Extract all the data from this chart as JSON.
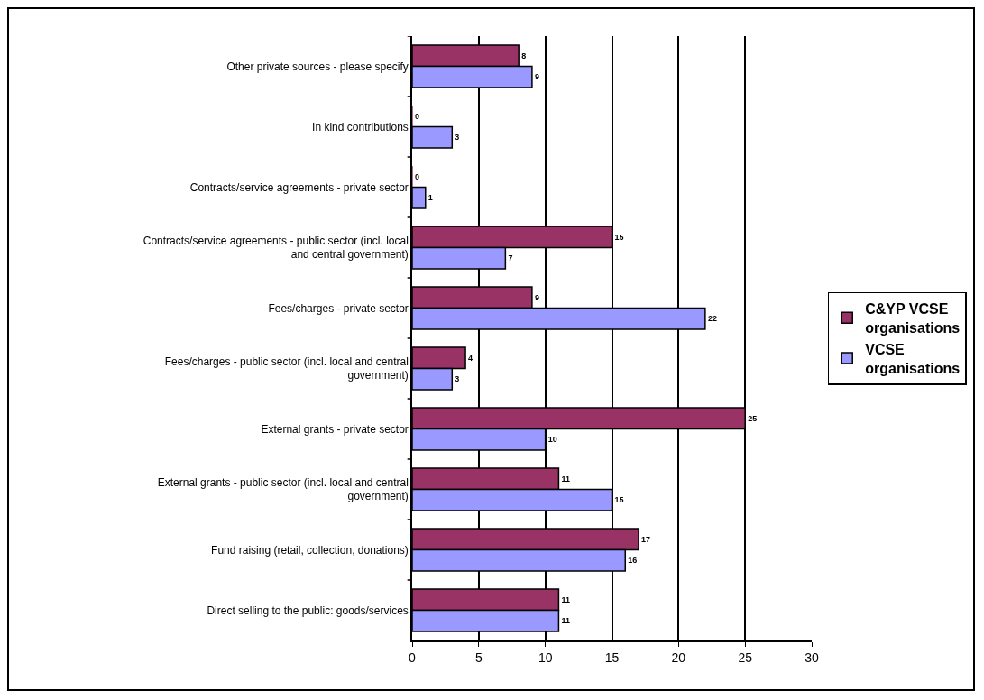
{
  "chart_data": {
    "type": "bar",
    "orientation": "horizontal",
    "categories": [
      "Other private sources - please specify",
      "In kind contributions",
      "Contracts/service agreements - private sector",
      "Contracts/service agreements - public sector (incl. local and central government)",
      "Fees/charges - private sector",
      "Fees/charges - public sector (incl. local and central government)",
      "External grants - private sector",
      "External grants - public sector (incl. local and central government)",
      "Fund raising (retail, collection, donations)",
      "Direct selling to the public: goods/services"
    ],
    "series": [
      {
        "name": "C&YP VCSE organisations",
        "color": "#993366",
        "values": [
          8,
          0,
          0,
          15,
          9,
          4,
          25,
          11,
          17,
          11
        ]
      },
      {
        "name": "VCSE organisations",
        "color": "#9999ff",
        "values": [
          9,
          3,
          1,
          7,
          22,
          3,
          10,
          15,
          16,
          11
        ]
      }
    ],
    "xlim": [
      0,
      30
    ],
    "xticks": [
      0,
      5,
      10,
      15,
      20,
      25,
      30
    ],
    "grid": "x",
    "legend": "right",
    "data_labels": true
  }
}
